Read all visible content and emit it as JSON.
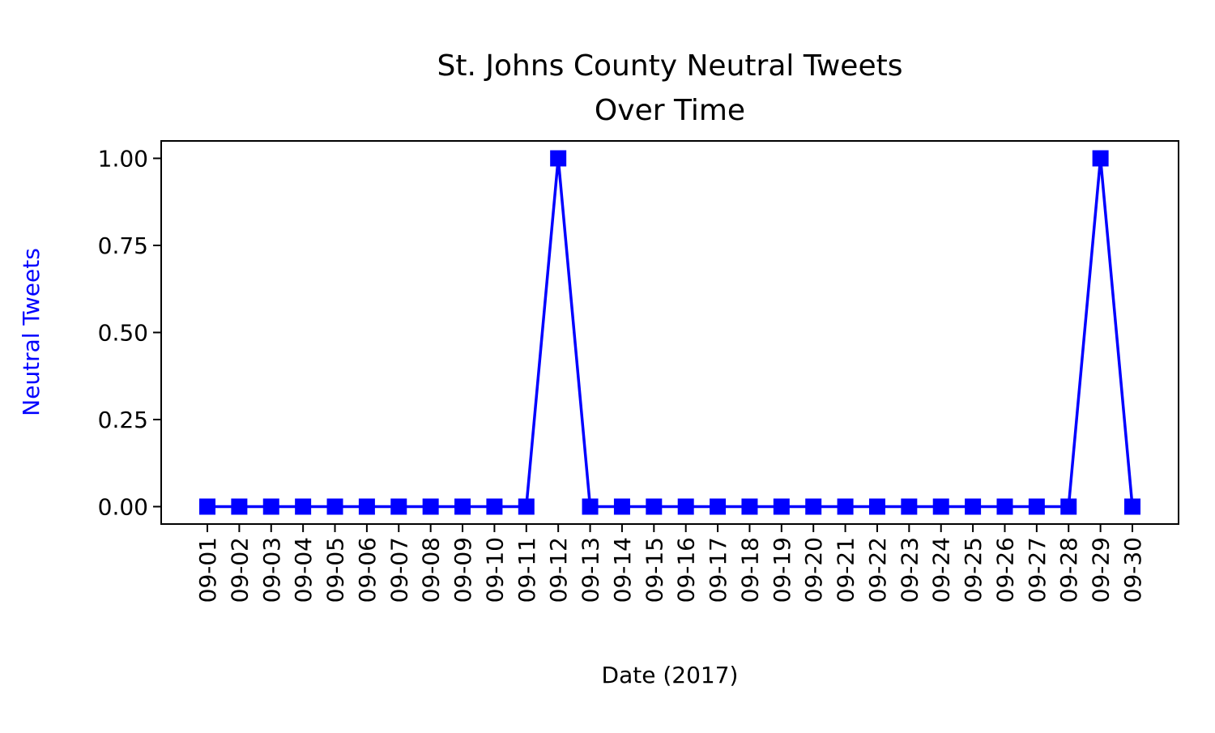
{
  "chart_data": {
    "type": "line",
    "title_line1": "St. Johns County Neutral Tweets",
    "title_line2": "Over Time",
    "xlabel": "Date (2017)",
    "ylabel": "Neutral Tweets",
    "ylim": [
      -0.05,
      1.05
    ],
    "y_ticks": [
      0.0,
      0.25,
      0.5,
      0.75,
      1.0
    ],
    "y_tick_labels": [
      "0.00",
      "0.25",
      "0.50",
      "0.75",
      "1.00"
    ],
    "categories": [
      "09-01",
      "09-02",
      "09-03",
      "09-04",
      "09-05",
      "09-06",
      "09-07",
      "09-08",
      "09-09",
      "09-10",
      "09-11",
      "09-12",
      "09-13",
      "09-14",
      "09-15",
      "09-16",
      "09-17",
      "09-18",
      "09-19",
      "09-20",
      "09-21",
      "09-22",
      "09-23",
      "09-24",
      "09-25",
      "09-26",
      "09-27",
      "09-28",
      "09-29",
      "09-30"
    ],
    "series": [
      {
        "values": [
          0,
          0,
          0,
          0,
          0,
          0,
          0,
          0,
          0,
          0,
          0,
          1,
          0,
          0,
          0,
          0,
          0,
          0,
          0,
          0,
          0,
          0,
          0,
          0,
          0,
          0,
          0,
          0,
          1,
          0
        ],
        "color": "#0000ff",
        "marker": "square"
      }
    ],
    "grid": false,
    "ylabel_color": "#0000ff"
  }
}
